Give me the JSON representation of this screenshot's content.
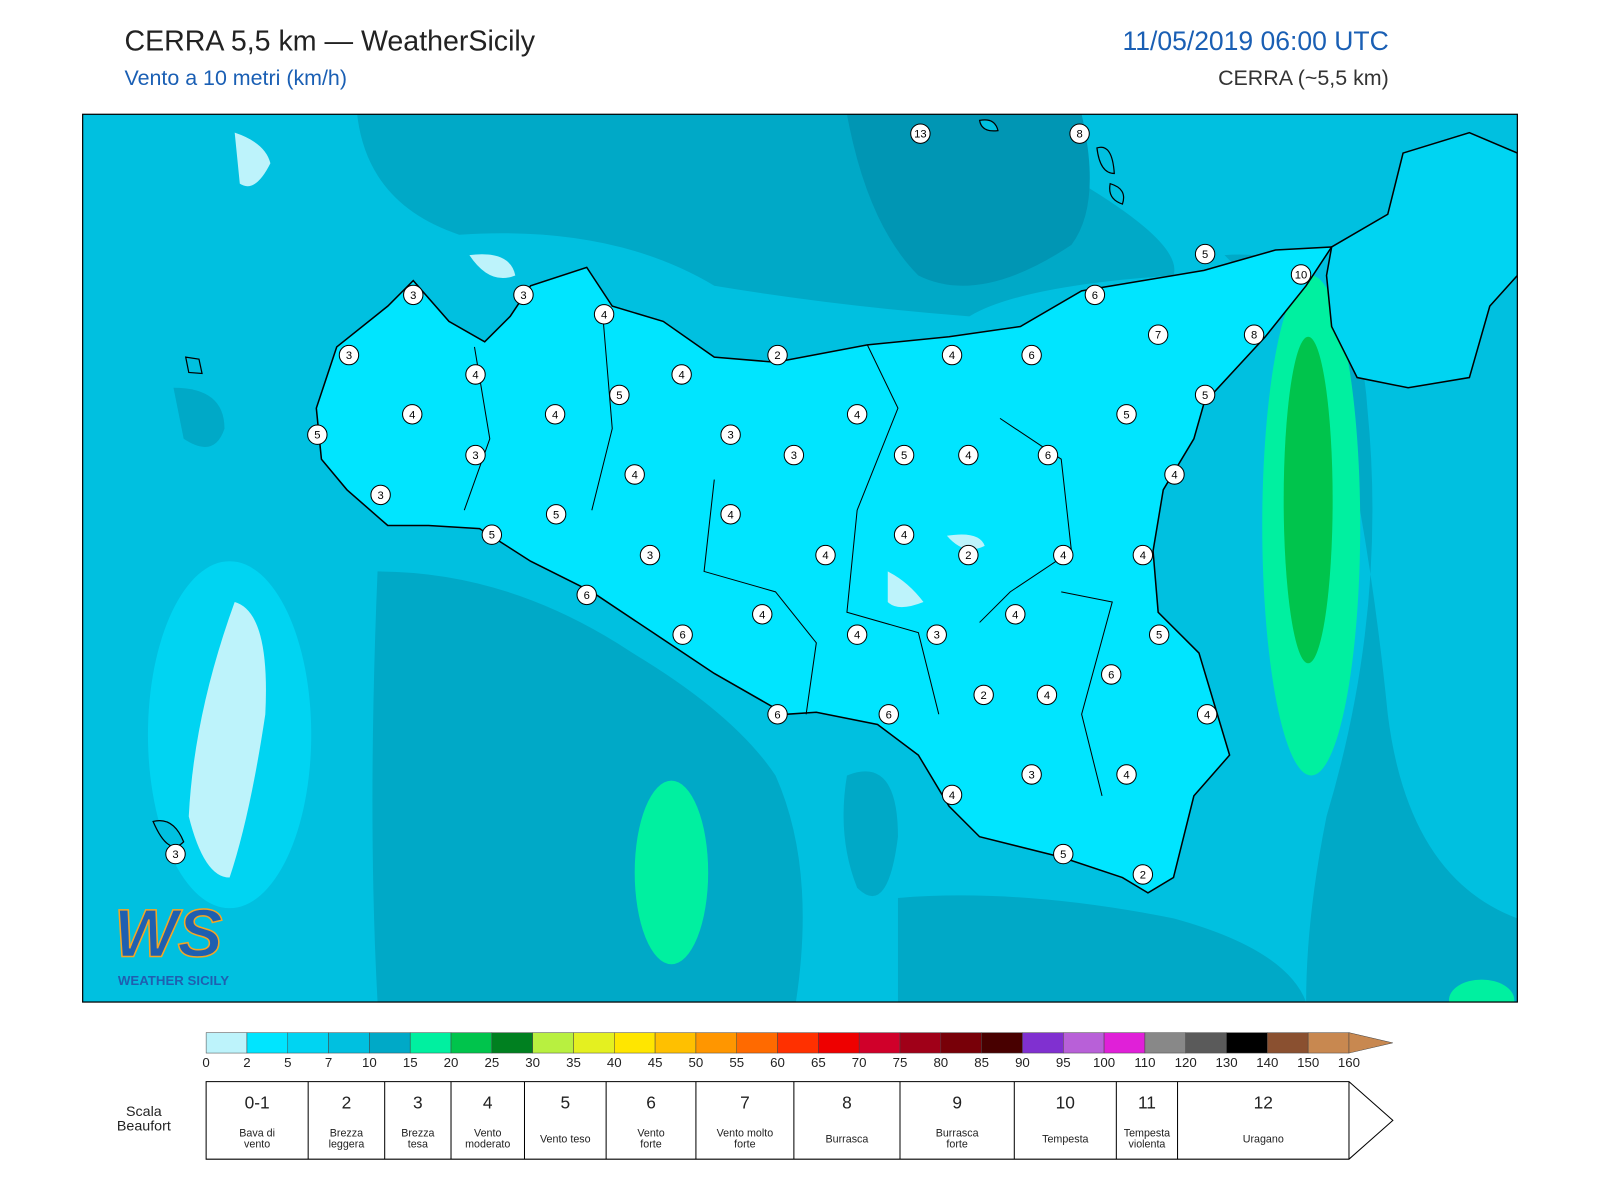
{
  "header": {
    "title": "CERRA 5,5 km — WeatherSicily",
    "subtitle": "Vento a 10 metri (km/h)",
    "datetime": "11/05/2019 06:00 UTC",
    "model": "CERRA (~5,5 km)"
  },
  "logo": {
    "text": "WS",
    "caption": "WEATHER SICILY"
  },
  "stations": [
    13,
    8,
    5,
    10,
    6,
    7,
    8,
    3,
    3,
    4,
    3,
    4,
    4,
    2,
    4,
    6,
    5,
    5,
    4,
    4,
    4,
    5,
    5,
    3,
    3,
    3,
    5,
    4,
    6,
    4,
    4,
    3,
    5,
    4,
    5,
    4,
    3,
    4,
    2,
    4,
    4,
    6,
    4,
    4,
    6,
    4,
    3,
    5,
    6,
    2,
    4,
    6,
    6,
    4,
    3,
    4,
    4,
    5,
    2,
    3
  ],
  "colorbar": {
    "ticks": [
      0,
      2,
      5,
      7,
      10,
      15,
      20,
      25,
      30,
      35,
      40,
      45,
      50,
      55,
      60,
      65,
      70,
      75,
      80,
      85,
      90,
      95,
      100,
      110,
      120,
      130,
      140,
      150,
      160
    ],
    "colors": [
      "#bdf3fb",
      "#00e5ff",
      "#00d4f2",
      "#00c0e0",
      "#00a9c7",
      "#00f0a0",
      "#00c44c",
      "#008020",
      "#b8f040",
      "#e4f020",
      "#ffe600",
      "#ffc000",
      "#ff9600",
      "#ff6a00",
      "#ff3000",
      "#ee0000",
      "#d0002a",
      "#a00018",
      "#780008",
      "#480000",
      "#8030d0",
      "#b860d8",
      "#e020d8",
      "#888888",
      "#5a5a5a",
      "#000000",
      "#8a5030",
      "#c88850"
    ]
  },
  "beaufort": {
    "label": [
      "Scala",
      "Beaufort"
    ],
    "levels": [
      {
        "force": "0-1",
        "desc": [
          "Bava di",
          "vento"
        ]
      },
      {
        "force": 2,
        "desc": [
          "Brezza",
          "leggera"
        ]
      },
      {
        "force": 3,
        "desc": [
          "Brezza",
          "tesa"
        ]
      },
      {
        "force": 4,
        "desc": [
          "Vento",
          "moderato"
        ]
      },
      {
        "force": 5,
        "desc": [
          "Vento teso"
        ]
      },
      {
        "force": 6,
        "desc": [
          "Vento",
          "forte"
        ]
      },
      {
        "force": 7,
        "desc": [
          "Vento molto",
          "forte"
        ]
      },
      {
        "force": 8,
        "desc": [
          "Burrasca"
        ]
      },
      {
        "force": 9,
        "desc": [
          "Burrasca",
          "forte"
        ]
      },
      {
        "force": 10,
        "desc": [
          "Tempesta"
        ]
      },
      {
        "force": 11,
        "desc": [
          "Tempesta",
          "violenta"
        ]
      },
      {
        "force": 12,
        "desc": [
          "Uragano"
        ]
      }
    ]
  }
}
